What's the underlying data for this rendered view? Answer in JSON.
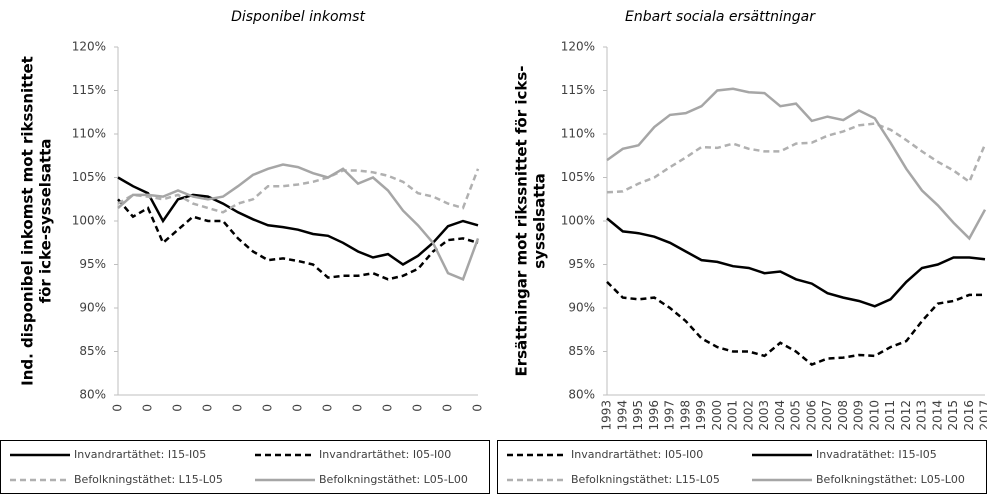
{
  "chart_data": [
    {
      "type": "line",
      "title": "Disponibel inkomst",
      "ylabel": [
        "Ind. disponibel inkomst mot rikssnittet",
        "för icke-sysselsatta"
      ],
      "categories": [
        "0",
        null,
        "0",
        null,
        "0",
        null,
        "0",
        null,
        "0",
        null,
        "0",
        null,
        "0",
        null,
        "0",
        null,
        "0",
        null,
        "0",
        null,
        "0",
        null,
        "0",
        null,
        "0"
      ],
      "ylim": [
        80,
        120
      ],
      "yticks": [
        {
          "value": 80,
          "label": "80%"
        },
        {
          "value": 85,
          "label": "85%"
        },
        {
          "value": 90,
          "label": "90%"
        },
        {
          "value": 95,
          "label": "95%"
        },
        {
          "value": 100,
          "label": "100%"
        },
        {
          "value": 105,
          "label": "105%"
        },
        {
          "value": 110,
          "label": "110%"
        },
        {
          "value": 115,
          "label": "115%"
        },
        {
          "value": 120,
          "label": "120%"
        }
      ],
      "series": [
        {
          "name": "Invandrartäthet: I15-I05",
          "color": "#000000",
          "dash": false,
          "values": [
            105,
            104,
            103.2,
            100,
            102.5,
            103,
            102.8,
            102,
            101,
            100.2,
            99.5,
            99.3,
            99,
            98.5,
            98.3,
            97.5,
            96.5,
            95.8,
            96.2,
            95,
            96,
            97.5,
            99.4,
            100,
            99.5
          ]
        },
        {
          "name": "Invandrartäthet: I05-I00",
          "color": "#000000",
          "dash": true,
          "values": [
            102.5,
            100.5,
            101.5,
            97.5,
            99,
            100.5,
            100,
            100,
            98,
            96.5,
            95.5,
            95.7,
            95.4,
            95,
            93.5,
            93.7,
            93.7,
            94,
            93.3,
            93.7,
            94.5,
            96.5,
            97.8,
            98,
            97.5
          ]
        },
        {
          "name": "Befolkningstäthet: L15-L05",
          "color": "#b0b0b0",
          "dash": true,
          "values": [
            102,
            103,
            102.8,
            102.5,
            103,
            102,
            101.5,
            101,
            102,
            102.5,
            104,
            104,
            104.2,
            104.5,
            105,
            105.8,
            105.8,
            105.6,
            105.2,
            104.5,
            103.2,
            102.8,
            102,
            101.5,
            106
          ]
        },
        {
          "name": "Befolkningstäthet: L05-L00",
          "color": "#a6a6a6",
          "dash": false,
          "values": [
            101.5,
            103,
            103,
            102.8,
            103.5,
            102.8,
            102.5,
            102.8,
            104,
            105.3,
            106,
            106.5,
            106.2,
            105.5,
            105,
            106,
            104.3,
            105,
            103.5,
            101.2,
            99.5,
            97.5,
            94,
            93.3,
            98
          ]
        }
      ]
    },
    {
      "type": "line",
      "title": "Enbart sociala ersättningar",
      "ylabel": [
        "Ersättningar mot rikssnittet för icks-",
        "sysselsatta"
      ],
      "categories": [
        "1993",
        "1994",
        "1995",
        "1996",
        "1997",
        "1998",
        "1999",
        "2000",
        "2001",
        "2002",
        "2003",
        "2004",
        "2005",
        "2006",
        "2007",
        "2008",
        "2009",
        "2010",
        "2011",
        "2012",
        "2013",
        "2014",
        "2015",
        "2016",
        "2017"
      ],
      "ylim": [
        80,
        120
      ],
      "yticks": [
        {
          "value": 80,
          "label": "80%"
        },
        {
          "value": 85,
          "label": "85%"
        },
        {
          "value": 90,
          "label": "90%"
        },
        {
          "value": 95,
          "label": "95%"
        },
        {
          "value": 100,
          "label": "100%"
        },
        {
          "value": 105,
          "label": "105%"
        },
        {
          "value": 110,
          "label": "110%"
        },
        {
          "value": 115,
          "label": "115%"
        },
        {
          "value": 120,
          "label": "120%"
        }
      ],
      "series": [
        {
          "name": "Invandrartäthet: I05-I00",
          "color": "#000000",
          "dash": true,
          "values": [
            93,
            91.2,
            91,
            91.2,
            90,
            88.5,
            86.5,
            85.5,
            85,
            85,
            84.5,
            86,
            85,
            83.5,
            84.2,
            84.3,
            84.6,
            84.5,
            85.5,
            86.2,
            88.5,
            90.5,
            90.8,
            91.5,
            91.5
          ]
        },
        {
          "name": "Invadratäthet: I15-I05",
          "color": "#000000",
          "dash": false,
          "values": [
            100.3,
            98.8,
            98.6,
            98.2,
            97.5,
            96.5,
            95.5,
            95.3,
            94.8,
            94.6,
            94,
            94.2,
            93.3,
            92.8,
            91.7,
            91.2,
            90.8,
            90.2,
            91,
            93,
            94.6,
            95,
            95.8,
            95.8,
            95.6
          ]
        },
        {
          "name": "Befolkningstäthet: L15-L05",
          "color": "#b0b0b0",
          "dash": true,
          "values": [
            103.3,
            103.4,
            104.3,
            105,
            106.2,
            107.3,
            108.5,
            108.4,
            108.9,
            108.3,
            108,
            108,
            108.9,
            109,
            109.8,
            110.3,
            111,
            111.2,
            110.5,
            109.3,
            108,
            106.8,
            105.8,
            104.5,
            108.8
          ]
        },
        {
          "name": "Befolkningstäthet: L05-L00",
          "color": "#a6a6a6",
          "dash": false,
          "values": [
            107,
            108.3,
            108.7,
            110.8,
            112.2,
            112.4,
            113.2,
            115,
            115.2,
            114.8,
            114.7,
            113.2,
            113.5,
            111.5,
            112,
            111.6,
            112.7,
            111.8,
            109,
            106,
            103.5,
            101.8,
            99.8,
            98,
            101.3
          ]
        }
      ]
    }
  ]
}
